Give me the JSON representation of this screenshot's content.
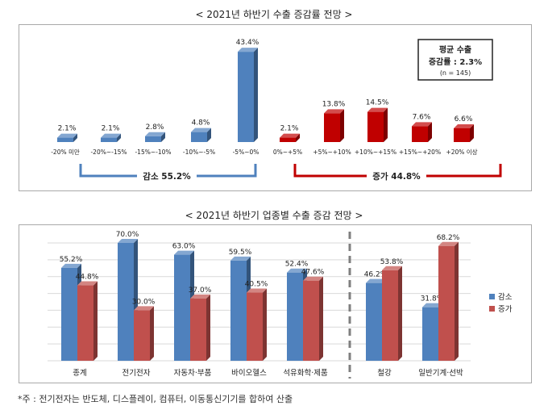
{
  "chart_data": [
    {
      "type": "bar",
      "title": "< 2021년 하반기 수출 증감률 전망 >",
      "categories": [
        "-20% 미만",
        "-20%~-15%",
        "-15%~-10%",
        "-10%~-5%",
        "-5%~0%",
        "0%~+5%",
        "+5%~+10%",
        "+10%~+15%",
        "+15%~+20%",
        "+20% 이상"
      ],
      "values": [
        2.1,
        2.1,
        2.8,
        4.8,
        43.4,
        2.1,
        13.8,
        14.5,
        7.6,
        6.6
      ],
      "value_labels": [
        "2.1%",
        "2.1%",
        "2.8%",
        "4.8%",
        "43.4%",
        "2.1%",
        "13.8%",
        "14.5%",
        "7.6%",
        "6.6%"
      ],
      "bar_colors": [
        "#4f81bd",
        "#4f81bd",
        "#4f81bd",
        "#4f81bd",
        "#4f81bd",
        "#c00000",
        "#c00000",
        "#c00000",
        "#c00000",
        "#c00000"
      ],
      "groups": [
        {
          "label": "감소 55.2%",
          "color": "#4f81bd"
        },
        {
          "label": "증가 44.8%",
          "color": "#c00000"
        }
      ],
      "note_box": {
        "line1": "평균 수출",
        "line2": "증감률 : 2.3%",
        "line3": "(n = 145)"
      },
      "ylim": [
        0,
        45
      ],
      "grid": false
    },
    {
      "type": "bar",
      "title": "< 2021년 하반기 업종별 수출 증감 전망 >",
      "categories": [
        "종계",
        "전기전자",
        "자동차·부품",
        "바이오헬스",
        "석유화학·제품",
        "철강",
        "일반기계·선박"
      ],
      "series": [
        {
          "name": "감소",
          "color": "#4f81bd",
          "values": [
            55.2,
            70.0,
            63.0,
            59.5,
            52.4,
            46.2,
            31.8
          ]
        },
        {
          "name": "증가",
          "color": "#c0504d",
          "values": [
            44.8,
            30.0,
            37.0,
            40.5,
            47.6,
            53.8,
            68.2
          ]
        }
      ],
      "value_labels": [
        [
          "55.2%",
          "70.0%",
          "63.0%",
          "59.5%",
          "52.4%",
          "46.2%",
          "31.8%"
        ],
        [
          "44.8%",
          "30.0%",
          "37.0%",
          "40.5%",
          "47.6%",
          "53.8%",
          "68.2%"
        ]
      ],
      "ylim": [
        0,
        70
      ],
      "grid": true,
      "legend_position": "right"
    }
  ],
  "footnote": "*주 : 전기전자는 반도체, 디스플레이, 컴퓨터, 이동통신기기를 합하여 산출"
}
